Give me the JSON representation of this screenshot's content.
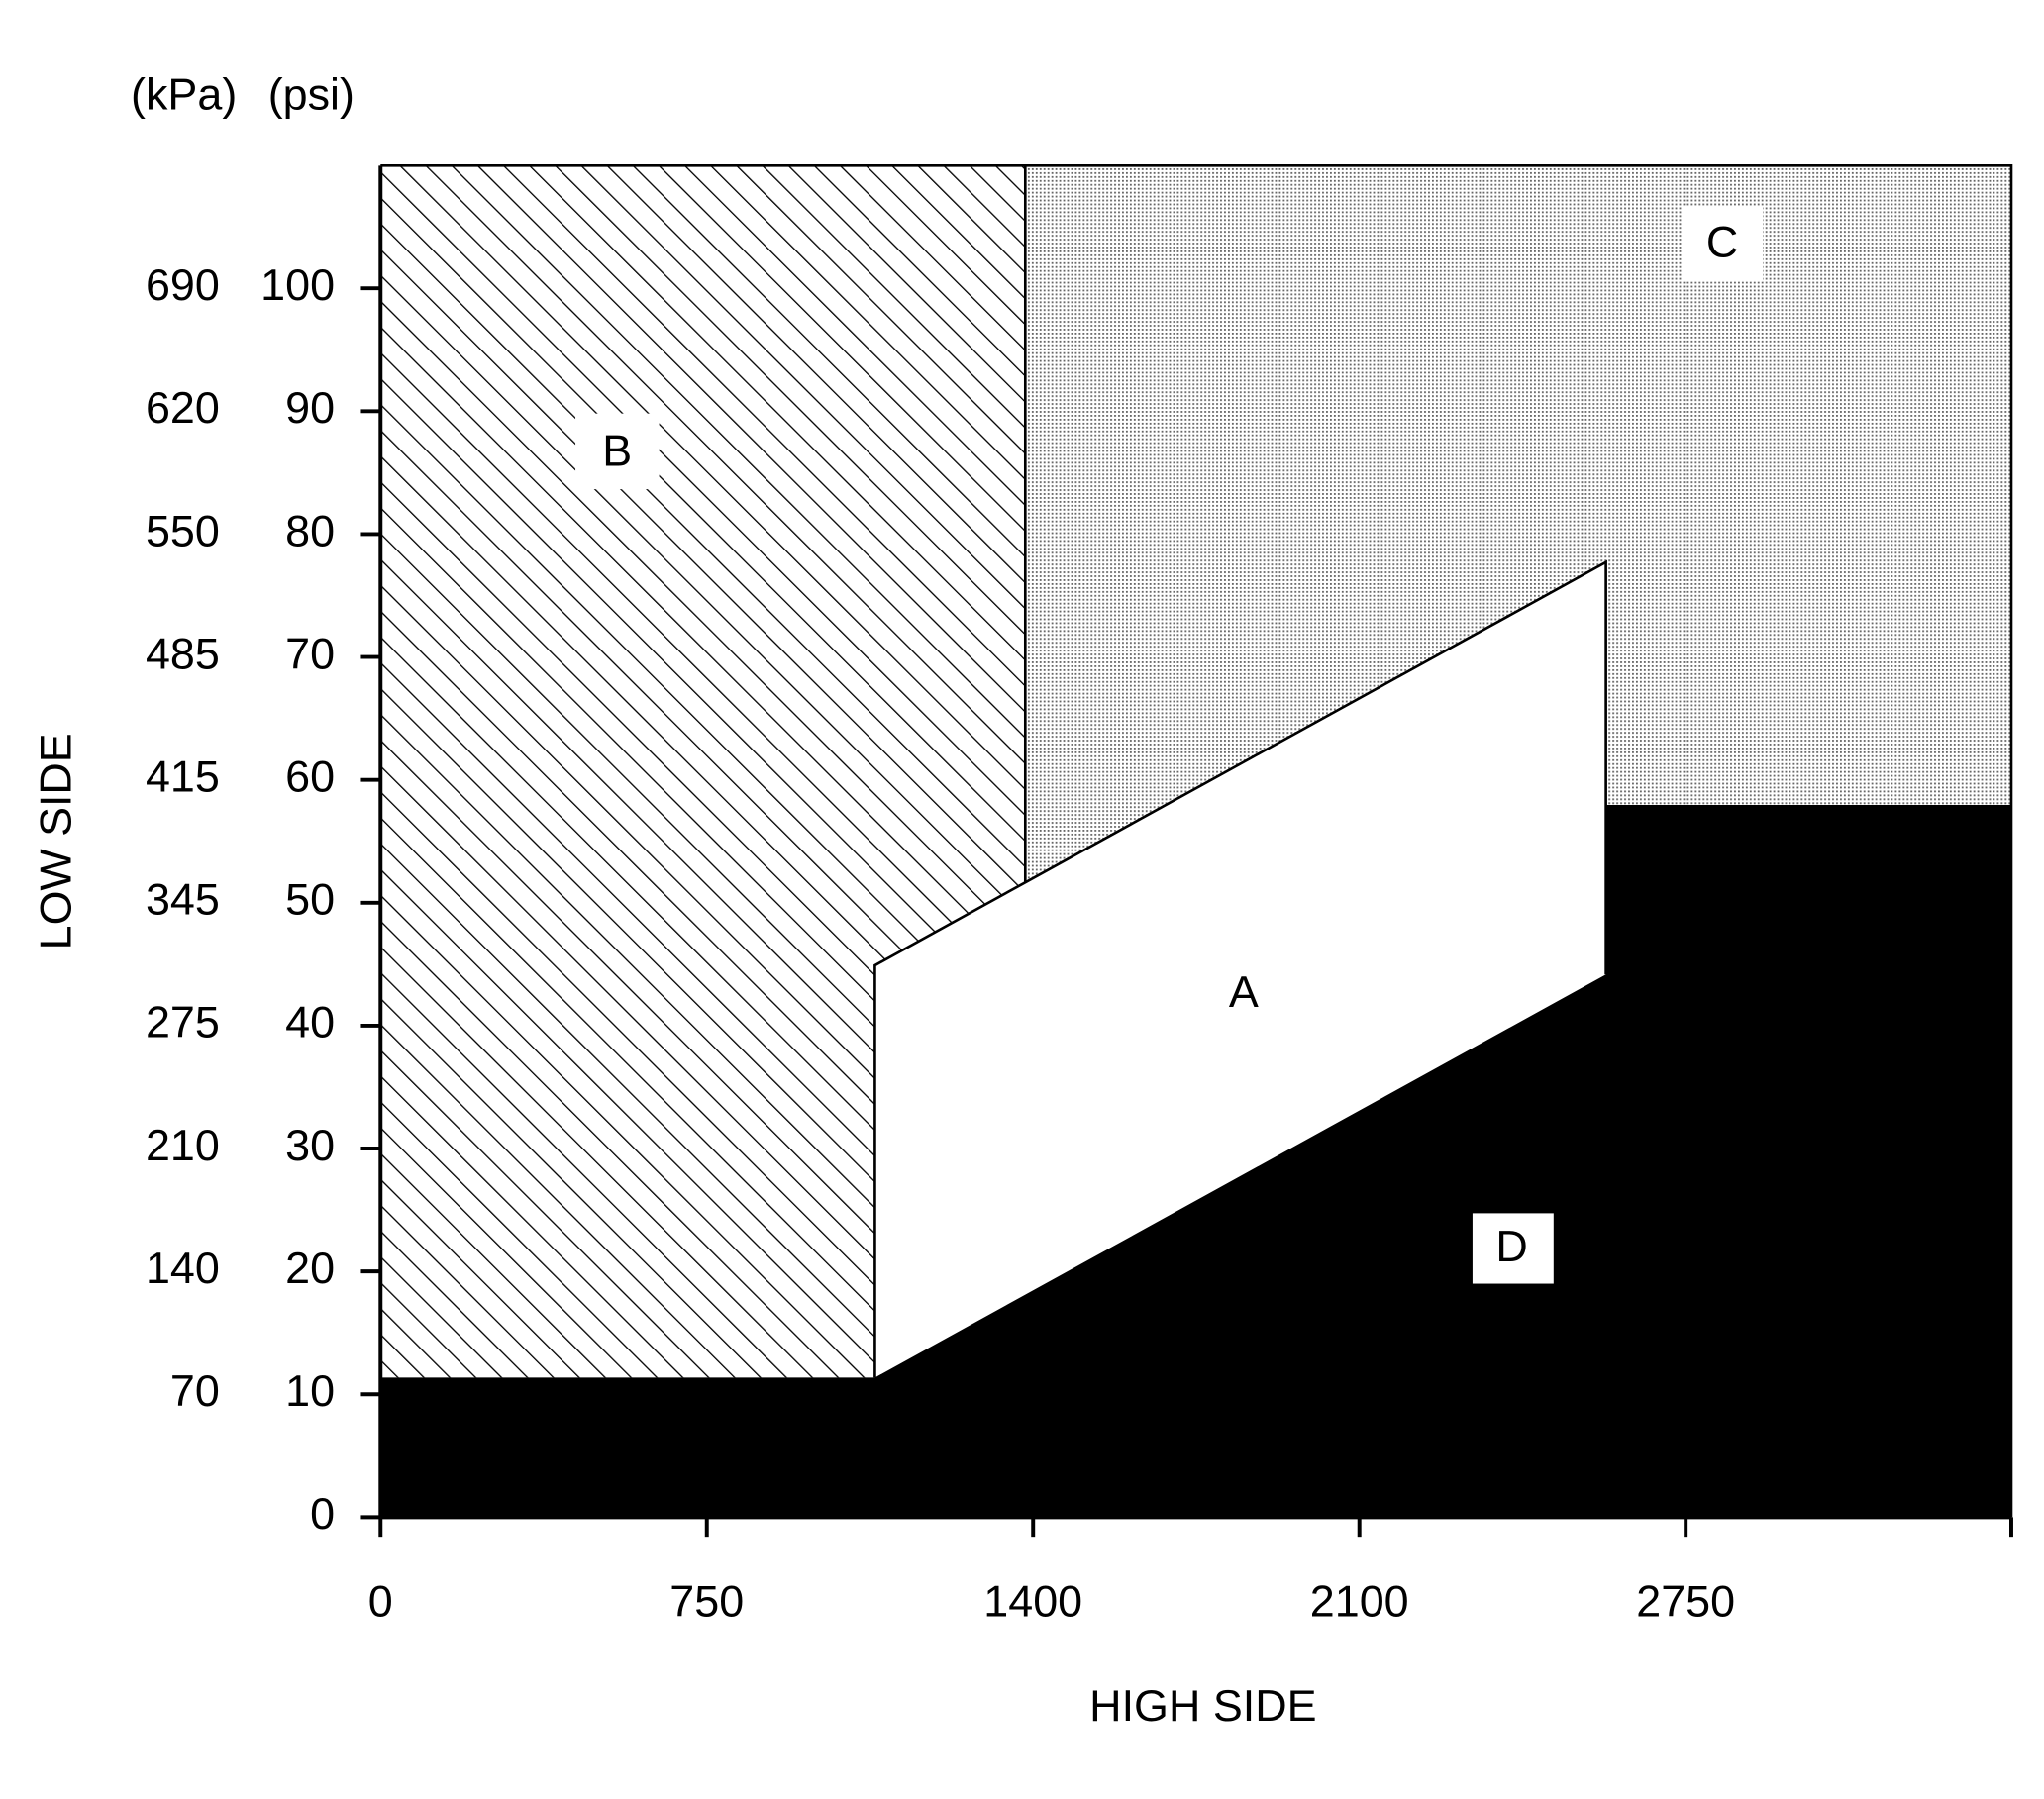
{
  "y_axis": {
    "title": "LOW SIDE",
    "units": [
      "(kPa)",
      "(psi)"
    ],
    "psi_ticks": [
      0,
      10,
      20,
      30,
      40,
      50,
      60,
      70,
      80,
      90,
      100
    ],
    "kpa_ticks": [
      70,
      140,
      210,
      275,
      345,
      415,
      485,
      550,
      620,
      690
    ]
  },
  "x_axis": {
    "title": "HIGH SIDE",
    "ticks": [
      0,
      750,
      1400,
      2100,
      2750
    ]
  },
  "regions": [
    {
      "label": "A"
    },
    {
      "label": "B"
    },
    {
      "label": "C"
    },
    {
      "label": "D"
    }
  ]
}
